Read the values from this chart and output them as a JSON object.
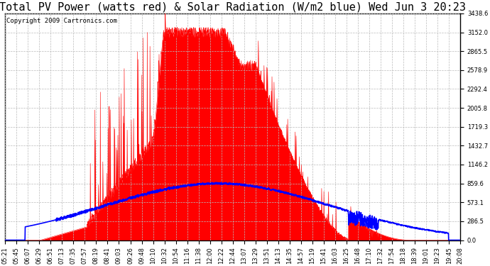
{
  "title": "Total PV Power (watts red) & Solar Radiation (W/m2 blue) Wed Jun 3 20:23",
  "copyright": "Copyright 2009 Cartronics.com",
  "bg_color": "#ffffff",
  "plot_bg_color": "#ffffff",
  "grid_color": "#bbbbbb",
  "ymax": 3438.6,
  "ymin": 0.0,
  "yticks": [
    0.0,
    286.5,
    573.1,
    859.6,
    1146.2,
    1432.7,
    1719.3,
    2005.8,
    2292.4,
    2578.9,
    2865.5,
    3152.0,
    3438.6
  ],
  "xtick_labels": [
    "05:21",
    "05:45",
    "06:07",
    "06:29",
    "06:51",
    "07:13",
    "07:35",
    "07:57",
    "08:19",
    "08:41",
    "09:03",
    "09:26",
    "09:48",
    "10:10",
    "10:32",
    "10:54",
    "11:16",
    "11:38",
    "12:00",
    "12:22",
    "12:44",
    "13:07",
    "13:29",
    "13:51",
    "14:13",
    "14:35",
    "14:57",
    "15:19",
    "15:41",
    "16:03",
    "16:25",
    "16:48",
    "17:10",
    "17:32",
    "17:54",
    "18:18",
    "18:39",
    "19:01",
    "19:23",
    "19:45",
    "20:08"
  ],
  "red_color": "#ff0000",
  "blue_color": "#0000ff",
  "title_fontsize": 11,
  "copyright_fontsize": 6.5,
  "tick_fontsize": 6.0
}
